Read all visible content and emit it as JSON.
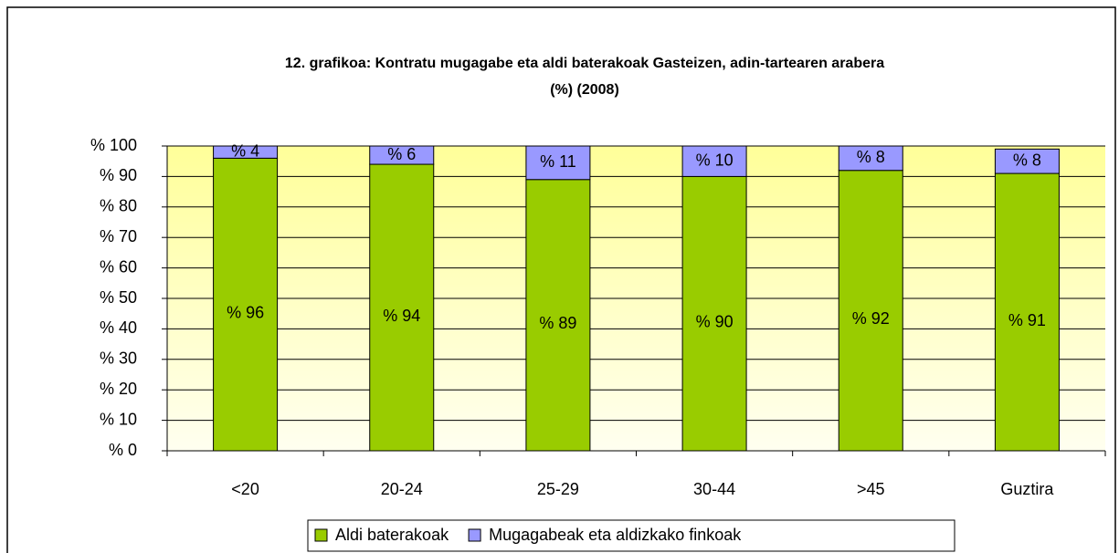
{
  "chart_data": {
    "type": "stacked_bar",
    "title": [
      "12. grafikoa: Kontratu mugagabe eta aldi baterakoak Gasteizen, adin-tartearen arabera",
      "(%) (2008)"
    ],
    "categories": [
      "<20",
      "20-24",
      "25-29",
      "30-44",
      ">45",
      "Guztira"
    ],
    "series": [
      {
        "name": "Aldi baterakoak",
        "color": "#99cc00",
        "values": [
          96,
          94,
          89,
          90,
          92,
          91
        ],
        "value_labels": [
          "% 96",
          "% 94",
          "% 89",
          "% 90",
          "% 92",
          "% 91"
        ]
      },
      {
        "name": "Mugagabeak eta aldizkako finkoak",
        "color": "#9999ff",
        "values": [
          4,
          6,
          11,
          10,
          8,
          8
        ],
        "value_labels": [
          "% 4",
          "% 6",
          "% 11",
          "% 10",
          "% 8",
          "% 8"
        ]
      }
    ],
    "ylim": [
      0,
      100
    ],
    "yticks": [
      {
        "value": 0,
        "label": "% 0"
      },
      {
        "value": 10,
        "label": "% 10"
      },
      {
        "value": 20,
        "label": "% 20"
      },
      {
        "value": 30,
        "label": "% 30"
      },
      {
        "value": 40,
        "label": "% 40"
      },
      {
        "value": 50,
        "label": "% 50"
      },
      {
        "value": 60,
        "label": "% 60"
      },
      {
        "value": 70,
        "label": "% 70"
      },
      {
        "value": 80,
        "label": "% 80"
      },
      {
        "value": 90,
        "label": "% 90"
      },
      {
        "value": 100,
        "label": "% 100"
      }
    ],
    "grid": true,
    "legend": "bottom"
  }
}
